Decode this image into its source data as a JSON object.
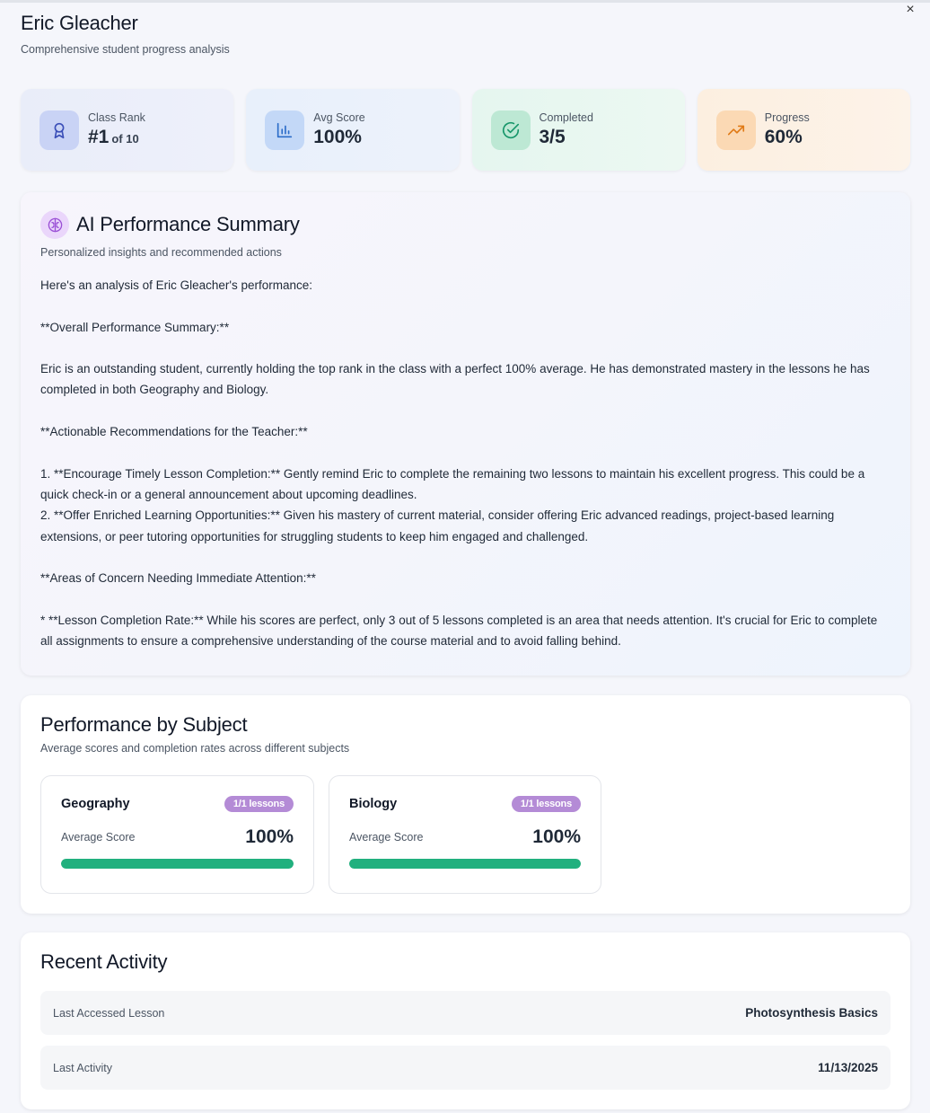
{
  "header": {
    "title": "Eric Gleacher",
    "subtitle": "Comprehensive student progress analysis",
    "close_glyph": "×"
  },
  "stats": {
    "rank": {
      "label": "Class Rank",
      "value": "#1",
      "sub": "of 10",
      "icon": "award-icon"
    },
    "avg": {
      "label": "Avg Score",
      "value": "100%",
      "icon": "bar-chart-icon"
    },
    "done": {
      "label": "Completed",
      "value": "3/5",
      "icon": "check-circle-icon"
    },
    "prog": {
      "label": "Progress",
      "value": "60%",
      "icon": "trending-up-icon"
    }
  },
  "ai_summary": {
    "title": "AI Performance Summary",
    "subtitle": "Personalized insights and recommended actions",
    "icon": "brain-icon",
    "paragraphs": [
      "Here's an analysis of Eric Gleacher's performance:",
      "**Overall Performance Summary:**",
      "Eric is an outstanding student, currently holding the top rank in the class with a perfect 100% average. He has demonstrated mastery in the lessons he has completed in both Geography and Biology.",
      "**Actionable Recommendations for the Teacher:**",
      "1.  **Encourage Timely Lesson Completion:** Gently remind Eric to complete the remaining two lessons to maintain his excellent progress. This could be a quick check-in or a general announcement about upcoming deadlines.",
      "2.  **Offer Enriched Learning Opportunities:** Given his mastery of current material, consider offering Eric advanced readings, project-based learning extensions, or peer tutoring opportunities for struggling students to keep him engaged and challenged.",
      "**Areas of Concern Needing Immediate Attention:**",
      "*   **Lesson Completion Rate:** While his scores are perfect, only 3 out of 5 lessons completed is an area that needs attention. It's crucial for Eric to complete all assignments to ensure a comprehensive understanding of the course material and to avoid falling behind."
    ]
  },
  "subjects": {
    "title": "Performance by Subject",
    "subtitle": "Average scores and completion rates across different subjects",
    "items": [
      {
        "name": "Geography",
        "badge": "1/1 lessons",
        "score_label": "Average Score",
        "score": "100%",
        "fill": 1.0
      },
      {
        "name": "Biology",
        "badge": "1/1 lessons",
        "score_label": "Average Score",
        "score": "100%",
        "fill": 1.0
      }
    ],
    "bar_color": "#21b07e"
  },
  "activity": {
    "title": "Recent Activity",
    "rows": [
      {
        "label": "Last Accessed Lesson",
        "value": "Photosynthesis Basics"
      },
      {
        "label": "Last Activity",
        "value": "11/13/2025"
      }
    ]
  }
}
